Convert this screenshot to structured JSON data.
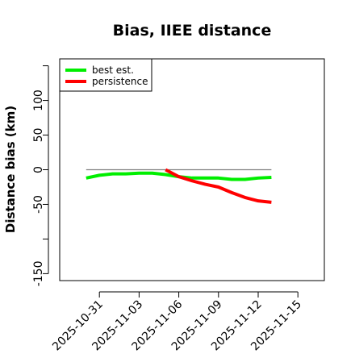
{
  "chart_data": {
    "type": "line",
    "title": "Bias, IIEE distance",
    "xlabel": "",
    "ylabel": "Distance bias (km)",
    "xlim": [
      "2025-10-28",
      "2025-11-17"
    ],
    "ylim": [
      -160,
      160
    ],
    "x_ticks": [
      "2025-10-31",
      "2025-11-03",
      "2025-11-06",
      "2025-11-09",
      "2025-11-12",
      "2025-11-15"
    ],
    "y_ticks": [
      -150,
      -100,
      -50,
      0,
      50,
      100,
      150
    ],
    "y_tick_labels": [
      "-150",
      "",
      "-50",
      "0",
      "50",
      "100",
      ""
    ],
    "reference_line": {
      "y": 0,
      "x_range": [
        "2025-10-30",
        "2025-11-13"
      ],
      "color": "#808080"
    },
    "grid": false,
    "legend": "top-left",
    "series": [
      {
        "name": "best est.",
        "color": "#00ee00",
        "x": [
          "2025-10-30",
          "2025-10-31",
          "2025-11-01",
          "2025-11-02",
          "2025-11-03",
          "2025-11-04",
          "2025-11-05",
          "2025-11-06",
          "2025-11-07",
          "2025-11-08",
          "2025-11-09",
          "2025-11-10",
          "2025-11-11",
          "2025-11-12",
          "2025-11-13"
        ],
        "values": [
          -12,
          -8,
          -6,
          -6,
          -5,
          -5,
          -7,
          -10,
          -12,
          -12,
          -12,
          -14,
          -14,
          -12,
          -11
        ]
      },
      {
        "name": "persistence",
        "color": "#ff0000",
        "x": [
          "2025-11-05",
          "2025-11-06",
          "2025-11-07",
          "2025-11-08",
          "2025-11-09",
          "2025-11-10",
          "2025-11-11",
          "2025-11-12",
          "2025-11-13"
        ],
        "values": [
          0,
          -10,
          -16,
          -21,
          -25,
          -33,
          -40,
          -45,
          -47
        ]
      }
    ]
  }
}
